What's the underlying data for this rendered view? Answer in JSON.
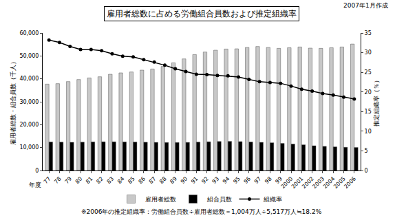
{
  "chart_data": {
    "type": "bar",
    "title": "雇用者総数に占める労働組合員数および推定組織率",
    "annotations": [
      "2007年1月作成",
      "※2006年の推定組織率：労働組合員数÷雇用者総数＝1,004万人÷5,517万人≒18.2%"
    ],
    "xlabel": "年度",
    "ylabel": "雇用者総数・組合員数（千人）",
    "y2label": "推定組織率（％）",
    "categories": [
      "77",
      "78",
      "79",
      "80",
      "81",
      "82",
      "83",
      "84",
      "85",
      "86",
      "87",
      "88",
      "89",
      "90",
      "91",
      "92",
      "93",
      "94",
      "95",
      "96",
      "97",
      "98",
      "99",
      "2000",
      "2001",
      "2002",
      "2003",
      "2004",
      "2005",
      "2006"
    ],
    "series": [
      {
        "name": "雇用者総数",
        "type": "bar",
        "color": "#c8c8c8",
        "values": [
          37700,
          37900,
          38800,
          39700,
          40400,
          40900,
          42000,
          42600,
          43000,
          43800,
          44300,
          45400,
          47000,
          48700,
          50600,
          51700,
          52500,
          53000,
          53100,
          53700,
          54100,
          53700,
          53300,
          53600,
          53900,
          53400,
          53300,
          53600,
          53900,
          55170
        ]
      },
      {
        "name": "組合員数",
        "type": "bar",
        "color": "#000000",
        "values": [
          12437,
          12383,
          12309,
          12369,
          12471,
          12526,
          12520,
          12464,
          12418,
          12343,
          12272,
          12227,
          12227,
          12265,
          12397,
          12541,
          12663,
          12699,
          12614,
          12451,
          12285,
          12093,
          11825,
          11539,
          11212,
          10801,
          10531,
          10309,
          10138,
          10040
        ]
      },
      {
        "name": "組織率",
        "type": "line",
        "axis": "y2",
        "color": "#000000",
        "marker": "circle",
        "values": [
          33.2,
          32.6,
          31.6,
          30.8,
          30.8,
          30.5,
          29.7,
          29.1,
          28.9,
          28.2,
          27.6,
          26.8,
          25.9,
          25.2,
          24.5,
          24.4,
          24.2,
          24.1,
          23.8,
          23.2,
          22.6,
          22.4,
          22.2,
          21.5,
          20.7,
          20.2,
          19.6,
          19.2,
          18.7,
          18.2
        ]
      }
    ],
    "ylim": [
      0,
      60000
    ],
    "yticks": [
      0,
      {
        "value": 10000,
        "label": "10,000"
      },
      {
        "value": 20000,
        "label": "20,000"
      },
      {
        "value": 30000,
        "label": "30,000"
      },
      {
        "value": 40000,
        "label": "40,000"
      },
      {
        "value": 50000,
        "label": "50,000"
      },
      {
        "value": 60000,
        "label": "60,000"
      }
    ],
    "y2lim": [
      0,
      35
    ],
    "y2ticks": [
      0,
      5,
      10,
      15,
      20,
      25,
      30,
      35
    ],
    "grid": false,
    "legend": "bottom"
  }
}
